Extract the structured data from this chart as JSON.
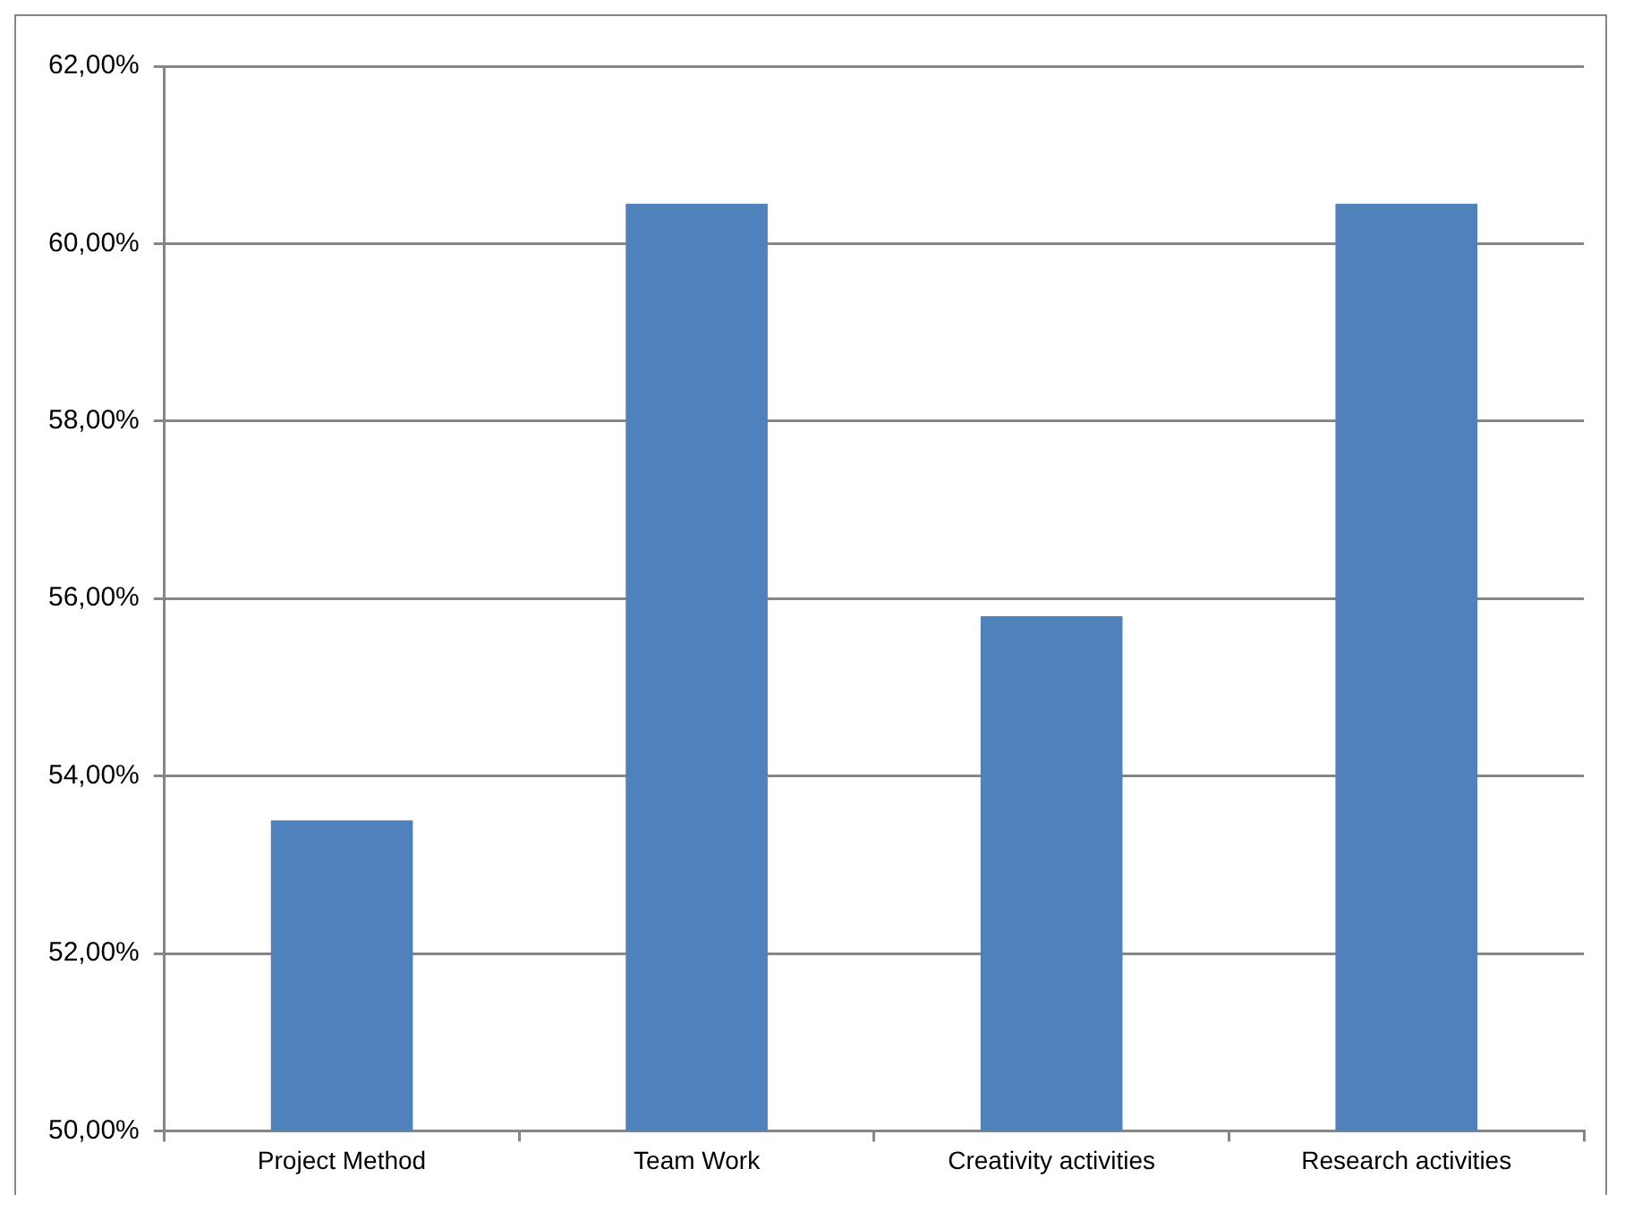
{
  "chart_data": {
    "type": "bar",
    "categories": [
      "Project Method",
      "Team Work",
      "Creativity activities",
      "Research activities"
    ],
    "values": [
      53.5,
      60.45,
      55.8,
      60.45
    ],
    "color": "#4f81bd",
    "ylim": [
      50,
      62
    ],
    "yticks": [
      {
        "value": 50,
        "label": "50,00%"
      },
      {
        "value": 52,
        "label": "52,00%"
      },
      {
        "value": 54,
        "label": "54,00%"
      },
      {
        "value": 56,
        "label": "56,00%"
      },
      {
        "value": 58,
        "label": "58,00%"
      },
      {
        "value": 60,
        "label": "60,00%"
      },
      {
        "value": 62,
        "label": "62,00%"
      }
    ],
    "grid": "y",
    "legend": false
  }
}
